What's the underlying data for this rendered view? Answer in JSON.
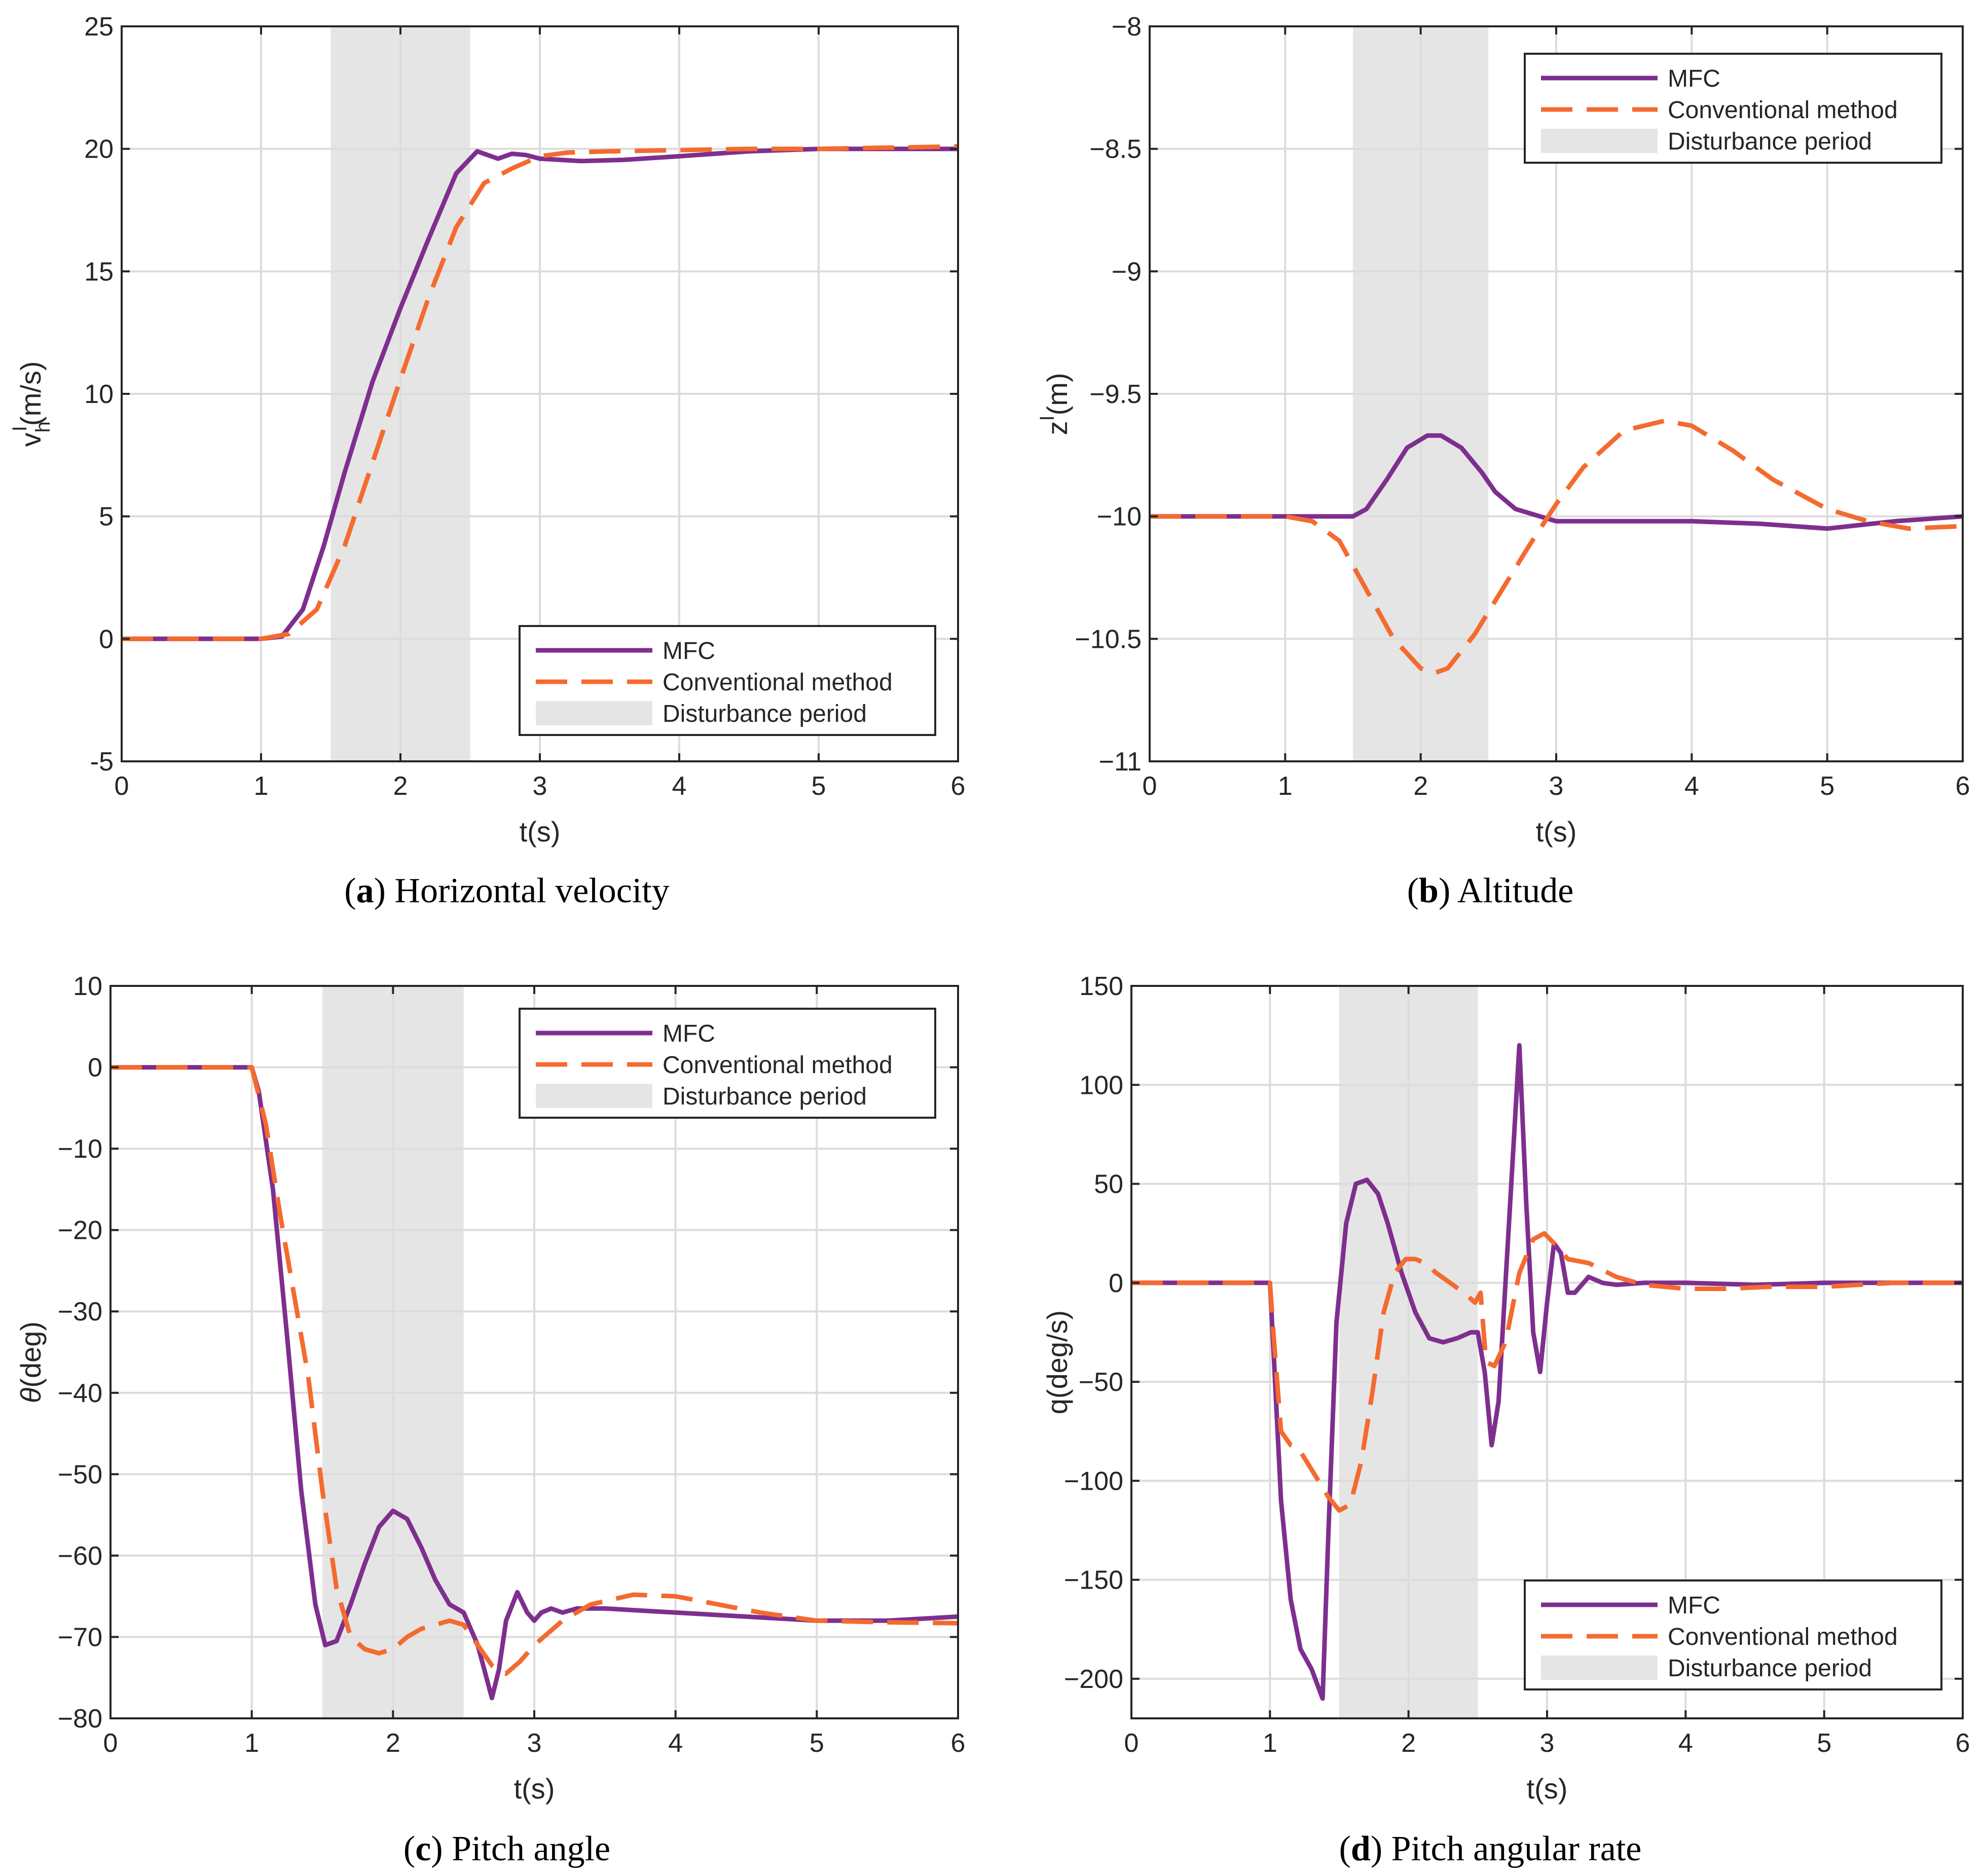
{
  "colors": {
    "mfc": "#7e2f8e",
    "conv": "#f46a2f",
    "shade": "#e5e5e5",
    "axis": "#262626"
  },
  "legend_entries": [
    "MFC",
    "Conventional method",
    "Disturbance period"
  ],
  "chart_data": [
    {
      "type": "line",
      "panel_label": "(a)",
      "caption": "Horizontal velocity",
      "xlabel": "t(s)",
      "ylabel": {
        "base": "v",
        "sup": "I",
        "sub": "h",
        "unit": "(m/s)"
      },
      "xlim": [
        0,
        6
      ],
      "ylim": [
        -5,
        25
      ],
      "xticks": [
        0,
        1,
        2,
        3,
        4,
        5,
        6
      ],
      "yticks": [
        -5,
        0,
        5,
        10,
        15,
        20,
        25
      ],
      "ytick_labels": [
        "-5",
        "0",
        "5",
        "10",
        "15",
        "20",
        "25"
      ],
      "grid": true,
      "legend": "bottom-right",
      "shade_x": [
        1.5,
        2.5
      ],
      "series": [
        {
          "name": "MFC",
          "style": "solid",
          "x": [
            0,
            1,
            1.15,
            1.3,
            1.45,
            1.6,
            1.8,
            2.0,
            2.2,
            2.4,
            2.55,
            2.7,
            2.8,
            2.9,
            3.0,
            3.3,
            3.6,
            4.0,
            4.5,
            5.0,
            5.5,
            6.0
          ],
          "y": [
            0,
            0,
            0.1,
            1.2,
            3.8,
            6.8,
            10.5,
            13.5,
            16.3,
            19.0,
            19.9,
            19.6,
            19.8,
            19.75,
            19.6,
            19.5,
            19.55,
            19.7,
            19.9,
            20.0,
            20.0,
            20.0
          ]
        },
        {
          "name": "Conventional method",
          "style": "dashed",
          "x": [
            0,
            1,
            1.2,
            1.4,
            1.6,
            1.8,
            2.0,
            2.2,
            2.4,
            2.6,
            2.8,
            3.0,
            3.2,
            3.5,
            4.0,
            4.5,
            5.0,
            5.5,
            6.0
          ],
          "y": [
            0,
            0,
            0.2,
            1.2,
            3.8,
            7.2,
            10.6,
            13.9,
            16.8,
            18.6,
            19.2,
            19.7,
            19.85,
            19.9,
            19.95,
            20.0,
            20.0,
            20.05,
            20.1
          ]
        }
      ]
    },
    {
      "type": "line",
      "panel_label": "(b)",
      "caption": "Altitude",
      "xlabel": "t(s)",
      "ylabel": {
        "base": "z",
        "sup": "I",
        "sub": "",
        "unit": "(m)"
      },
      "xlim": [
        0,
        6
      ],
      "ylim": [
        -11,
        -8
      ],
      "xticks": [
        0,
        1,
        2,
        3,
        4,
        5,
        6
      ],
      "yticks": [
        -11,
        -10.5,
        -10,
        -9.5,
        -9,
        -8.5,
        -8
      ],
      "ytick_labels": [
        "−11",
        "−10.5",
        "−10",
        "−9.5",
        "−9",
        "−8.5",
        "−8"
      ],
      "grid": true,
      "legend": "top-right",
      "shade_x": [
        1.5,
        2.5
      ],
      "series": [
        {
          "name": "MFC",
          "style": "solid",
          "x": [
            0,
            1,
            1.5,
            1.6,
            1.75,
            1.9,
            2.05,
            2.15,
            2.3,
            2.45,
            2.55,
            2.7,
            3.0,
            3.5,
            4.0,
            4.5,
            5.0,
            5.5,
            6.0
          ],
          "y": [
            -10,
            -10,
            -10.0,
            -9.97,
            -9.85,
            -9.72,
            -9.67,
            -9.67,
            -9.72,
            -9.82,
            -9.9,
            -9.97,
            -10.02,
            -10.02,
            -10.02,
            -10.03,
            -10.05,
            -10.02,
            -10.0
          ]
        },
        {
          "name": "Conventional method",
          "style": "dashed",
          "x": [
            0,
            1,
            1.2,
            1.4,
            1.6,
            1.8,
            2.0,
            2.1,
            2.2,
            2.4,
            2.6,
            2.8,
            3.0,
            3.2,
            3.5,
            3.8,
            4.0,
            4.3,
            4.6,
            5.0,
            5.3,
            5.6,
            6.0
          ],
          "y": [
            -10,
            -10,
            -10.02,
            -10.1,
            -10.3,
            -10.5,
            -10.62,
            -10.64,
            -10.62,
            -10.48,
            -10.3,
            -10.12,
            -9.95,
            -9.8,
            -9.65,
            -9.61,
            -9.63,
            -9.73,
            -9.85,
            -9.97,
            -10.02,
            -10.05,
            -10.04
          ]
        }
      ]
    },
    {
      "type": "line",
      "panel_label": "(c)",
      "caption": "Pitch angle",
      "xlabel": "t(s)",
      "ylabel": {
        "base": "θ",
        "sup": "",
        "sub": "",
        "unit": "(deg)"
      },
      "xlim": [
        0,
        6
      ],
      "ylim": [
        -80,
        10
      ],
      "xticks": [
        0,
        1,
        2,
        3,
        4,
        5,
        6
      ],
      "yticks": [
        -80,
        -70,
        -60,
        -50,
        -40,
        -30,
        -20,
        -10,
        0,
        10
      ],
      "ytick_labels": [
        "−80",
        "−70",
        "−60",
        "−50",
        "−40",
        "−30",
        "−20",
        "−10",
        "0",
        "10"
      ],
      "grid": true,
      "legend": "top-right",
      "shade_x": [
        1.5,
        2.5
      ],
      "series": [
        {
          "name": "MFC",
          "style": "solid",
          "x": [
            0,
            1,
            1.05,
            1.15,
            1.25,
            1.35,
            1.45,
            1.52,
            1.6,
            1.7,
            1.8,
            1.9,
            2.0,
            2.1,
            2.2,
            2.3,
            2.4,
            2.5,
            2.6,
            2.7,
            2.75,
            2.8,
            2.88,
            2.95,
            3.0,
            3.05,
            3.12,
            3.2,
            3.3,
            3.5,
            4.0,
            4.5,
            5.0,
            5.5,
            6.0
          ],
          "y": [
            0,
            0,
            -3,
            -15,
            -33,
            -52,
            -66,
            -71,
            -70.5,
            -66,
            -61,
            -56.5,
            -54.5,
            -55.5,
            -59,
            -63,
            -66,
            -67,
            -71,
            -77.5,
            -74,
            -68,
            -64.5,
            -67,
            -68,
            -67,
            -66.5,
            -67,
            -66.5,
            -66.5,
            -67,
            -67.5,
            -68,
            -68,
            -67.5
          ]
        },
        {
          "name": "Conventional method",
          "style": "dashed",
          "x": [
            0,
            1,
            1.1,
            1.2,
            1.3,
            1.4,
            1.5,
            1.6,
            1.7,
            1.8,
            1.9,
            2.0,
            2.1,
            2.2,
            2.3,
            2.4,
            2.5,
            2.6,
            2.7,
            2.8,
            2.9,
            3.0,
            3.2,
            3.4,
            3.7,
            4.0,
            4.3,
            4.6,
            5.0,
            5.5,
            6.0
          ],
          "y": [
            0,
            0,
            -7,
            -18,
            -28,
            -38,
            -52,
            -64,
            -70,
            -71.5,
            -72,
            -71.5,
            -70,
            -69,
            -68.5,
            -68,
            -68.5,
            -71,
            -73.5,
            -74.5,
            -73,
            -71,
            -68,
            -66,
            -64.8,
            -65,
            -66,
            -67,
            -68,
            -68.2,
            -68.3
          ]
        }
      ]
    },
    {
      "type": "line",
      "panel_label": "(d)",
      "caption": "Pitch angular rate",
      "xlabel": "t(s)",
      "ylabel": {
        "base": "q",
        "sup": "",
        "sub": "",
        "unit": "(deg/s)"
      },
      "xlim": [
        0,
        6
      ],
      "ylim": [
        -220,
        150
      ],
      "xticks": [
        0,
        1,
        2,
        3,
        4,
        5,
        6
      ],
      "yticks": [
        -200,
        -150,
        -100,
        -50,
        0,
        50,
        100,
        150
      ],
      "ytick_labels": [
        "−200",
        "−150",
        "−100",
        "−50",
        "0",
        "50",
        "100",
        "150"
      ],
      "grid": true,
      "legend": "bottom-right",
      "shade_x": [
        1.5,
        2.5
      ],
      "series": [
        {
          "name": "MFC",
          "style": "solid",
          "x": [
            0,
            1,
            1.03,
            1.08,
            1.15,
            1.22,
            1.3,
            1.38,
            1.42,
            1.48,
            1.55,
            1.62,
            1.7,
            1.78,
            1.85,
            1.95,
            2.05,
            2.15,
            2.25,
            2.35,
            2.45,
            2.5,
            2.55,
            2.6,
            2.65,
            2.7,
            2.75,
            2.8,
            2.85,
            2.9,
            2.95,
            3.0,
            3.05,
            3.1,
            3.15,
            3.2,
            3.3,
            3.4,
            3.5,
            3.7,
            4.0,
            4.5,
            5.0,
            5.5,
            6.0
          ],
          "y": [
            0,
            0,
            -40,
            -110,
            -160,
            -185,
            -195,
            -210,
            -130,
            -20,
            30,
            50,
            52,
            45,
            30,
            5,
            -15,
            -28,
            -30,
            -28,
            -25,
            -25,
            -45,
            -82,
            -60,
            0,
            60,
            120,
            40,
            -25,
            -45,
            -10,
            20,
            15,
            -5,
            -5,
            3,
            0,
            -1,
            0,
            0,
            -1,
            0,
            0,
            0
          ]
        },
        {
          "name": "Conventional method",
          "style": "dashed",
          "x": [
            0,
            1,
            1.03,
            1.08,
            1.15,
            1.2,
            1.28,
            1.35,
            1.42,
            1.5,
            1.58,
            1.66,
            1.74,
            1.82,
            1.9,
            1.98,
            2.05,
            2.12,
            2.2,
            2.3,
            2.4,
            2.48,
            2.52,
            2.56,
            2.62,
            2.7,
            2.8,
            2.9,
            2.98,
            3.05,
            3.15,
            3.3,
            3.5,
            3.7,
            4.0,
            4.3,
            4.6,
            5.0,
            5.5,
            6.0
          ],
          "y": [
            0,
            0,
            -30,
            -75,
            -82,
            -83,
            -92,
            -100,
            -108,
            -115,
            -112,
            -90,
            -55,
            -15,
            5,
            12,
            12,
            10,
            5,
            0,
            -5,
            -10,
            -5,
            -40,
            -42,
            -30,
            5,
            22,
            25,
            20,
            12,
            10,
            3,
            -1,
            -3,
            -3,
            -2,
            -2,
            0,
            0
          ]
        }
      ]
    }
  ]
}
